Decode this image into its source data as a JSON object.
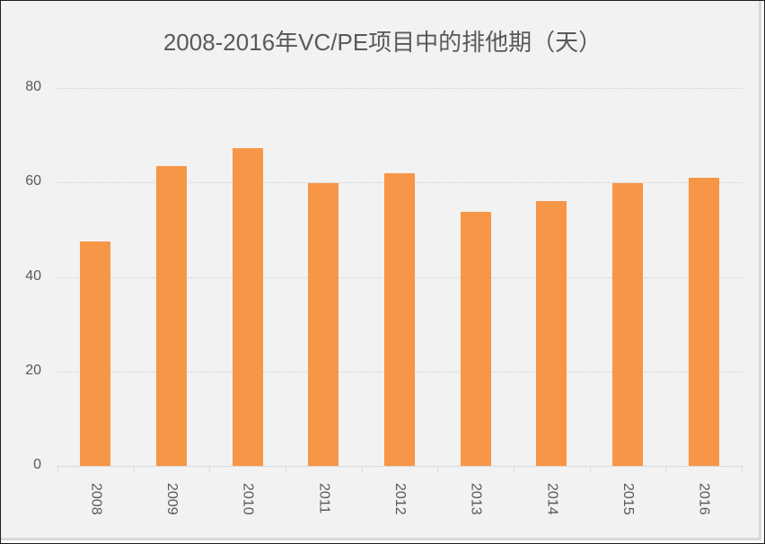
{
  "chart_data": {
    "type": "bar",
    "title": "2008-2016年VC/PE项目中的排他期（天）",
    "xlabel": "",
    "ylabel": "",
    "categories": [
      "2008",
      "2009",
      "2010",
      "2011",
      "2012",
      "2013",
      "2014",
      "2015",
      "2016"
    ],
    "values": [
      47.5,
      63.5,
      67.3,
      59.9,
      62.0,
      53.8,
      56.1,
      59.9,
      61.0
    ],
    "ylim": [
      0,
      80
    ],
    "yticks": [
      "0",
      "20",
      "40",
      "60",
      "80"
    ],
    "grid": true,
    "legend": "none",
    "bar_color": "#f79646",
    "background_color": "#f2f2f2"
  },
  "title": "2008-2016年VC/PE项目中的排他期（天）"
}
